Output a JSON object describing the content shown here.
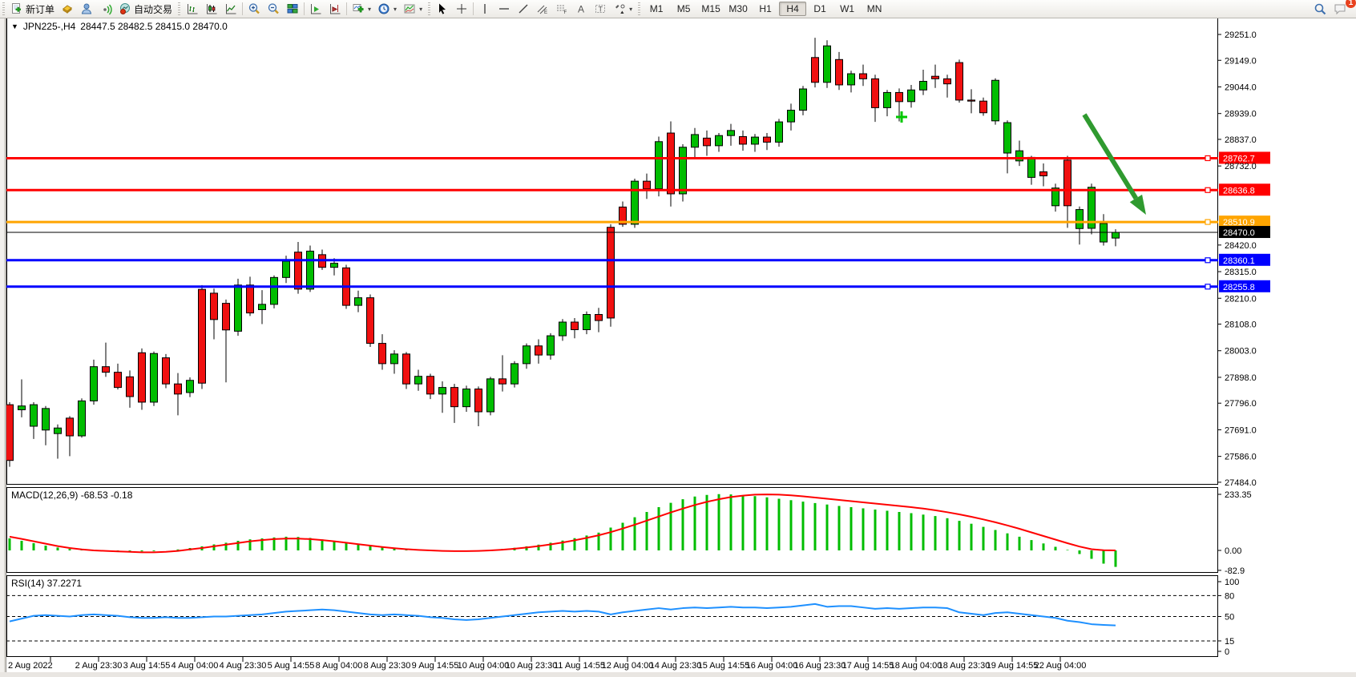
{
  "toolbar": {
    "new_order_label": "新订单",
    "autotrading_label": "自动交易",
    "timeframes": [
      "M1",
      "M5",
      "M15",
      "M30",
      "H1",
      "H4",
      "D1",
      "W1",
      "MN"
    ],
    "active_timeframe": "H4",
    "notification_badge": "1"
  },
  "chart": {
    "title": "JPN225-,H4",
    "ohlc_text": "28447.5 28482.5 28415.0 28470.0",
    "macd_label": "MACD(12,26,9) -68.53 -0.18",
    "rsi_label": "RSI(14) 37.2271"
  },
  "chart_data": {
    "type": "candlestick",
    "symbol": "JPN225-",
    "period": "H4",
    "last_ohlc": {
      "open": 28447.5,
      "high": 28482.5,
      "low": 28415.0,
      "close": 28470.0
    },
    "price_ticks": [
      29251.0,
      29149.0,
      29044.0,
      28939.0,
      28837.0,
      28732.0,
      28420.0,
      28315.0,
      28210.0,
      28108.0,
      28003.0,
      27898.0,
      27796.0,
      27691.0,
      27586.0,
      27484.0
    ],
    "levels": [
      {
        "price": 28762.7,
        "color": "#ff0000",
        "width": 3
      },
      {
        "price": 28636.8,
        "color": "#ff0000",
        "width": 3
      },
      {
        "price": 28510.9,
        "color": "#ffa500",
        "width": 3
      },
      {
        "price": 28470.0,
        "color": "#000000",
        "width": 1,
        "current": true
      },
      {
        "price": 28360.1,
        "color": "#0000ff",
        "width": 3
      },
      {
        "price": 28255.8,
        "color": "#0000ff",
        "width": 3
      }
    ],
    "candles": [
      [
        27790,
        27800,
        27545,
        27570
      ],
      [
        27770,
        27890,
        27740,
        27785
      ],
      [
        27705,
        27800,
        27655,
        27790
      ],
      [
        27690,
        27785,
        27630,
        27775
      ],
      [
        27676,
        27712,
        27577,
        27698
      ],
      [
        27737,
        27745,
        27587,
        27667
      ],
      [
        27667,
        27815,
        27660,
        27805
      ],
      [
        27805,
        27968,
        27790,
        27940
      ],
      [
        27940,
        28035,
        27900,
        27918
      ],
      [
        27918,
        27952,
        27850,
        27858
      ],
      [
        27900,
        27925,
        27778,
        27822
      ],
      [
        27995,
        28012,
        27770,
        27800
      ],
      [
        27800,
        28000,
        27785,
        27992
      ],
      [
        27975,
        27990,
        27855,
        27872
      ],
      [
        27872,
        27915,
        27748,
        27832
      ],
      [
        27838,
        27898,
        27820,
        27886
      ],
      [
        28245,
        28262,
        27852,
        27875
      ],
      [
        28230,
        28248,
        28048,
        28126
      ],
      [
        28190,
        28205,
        27878,
        28085
      ],
      [
        28080,
        28287,
        28062,
        28262
      ],
      [
        28262,
        28295,
        28140,
        28152
      ],
      [
        28165,
        28242,
        28108,
        28186
      ],
      [
        28186,
        28300,
        28170,
        28292
      ],
      [
        28292,
        28378,
        28270,
        28356
      ],
      [
        28392,
        28432,
        28228,
        28246
      ],
      [
        28246,
        28418,
        28235,
        28396
      ],
      [
        28382,
        28402,
        28322,
        28332
      ],
      [
        28332,
        28368,
        28300,
        28348
      ],
      [
        28330,
        28342,
        28168,
        28182
      ],
      [
        28182,
        28240,
        28155,
        28212
      ],
      [
        28212,
        28225,
        28018,
        28032
      ],
      [
        28032,
        28068,
        27928,
        27952
      ],
      [
        27952,
        28005,
        27912,
        27990
      ],
      [
        27990,
        27998,
        27852,
        27872
      ],
      [
        27872,
        27928,
        27845,
        27902
      ],
      [
        27902,
        27912,
        27812,
        27832
      ],
      [
        27832,
        27882,
        27758,
        27858
      ],
      [
        27858,
        27872,
        27718,
        27782
      ],
      [
        27782,
        27865,
        27762,
        27852
      ],
      [
        27852,
        27862,
        27705,
        27762
      ],
      [
        27762,
        27900,
        27748,
        27892
      ],
      [
        27892,
        27985,
        27842,
        27872
      ],
      [
        27872,
        27962,
        27858,
        27952
      ],
      [
        27952,
        28032,
        27932,
        28022
      ],
      [
        28022,
        28048,
        27952,
        27986
      ],
      [
        27986,
        28072,
        27968,
        28062
      ],
      [
        28062,
        28128,
        28042,
        28116
      ],
      [
        28116,
        28132,
        28052,
        28086
      ],
      [
        28086,
        28158,
        28068,
        28146
      ],
      [
        28146,
        28172,
        28076,
        28122
      ],
      [
        28490,
        28502,
        28098,
        28132
      ],
      [
        28570,
        28592,
        28492,
        28502
      ],
      [
        28502,
        28682,
        28488,
        28672
      ],
      [
        28672,
        28702,
        28602,
        28642
      ],
      [
        28642,
        28848,
        28612,
        28828
      ],
      [
        28862,
        28908,
        28572,
        28622
      ],
      [
        28622,
        28818,
        28592,
        28806
      ],
      [
        28806,
        28882,
        28762,
        28856
      ],
      [
        28842,
        28872,
        28772,
        28812
      ],
      [
        28812,
        28862,
        28788,
        28852
      ],
      [
        28852,
        28898,
        28812,
        28872
      ],
      [
        28848,
        28872,
        28792,
        28818
      ],
      [
        28818,
        28858,
        28788,
        28846
      ],
      [
        28846,
        28862,
        28795,
        28826
      ],
      [
        28826,
        28918,
        28808,
        28906
      ],
      [
        28906,
        28978,
        28872,
        28952
      ],
      [
        28952,
        29048,
        28932,
        29036
      ],
      [
        29160,
        29238,
        29042,
        29062
      ],
      [
        29062,
        29228,
        29040,
        29206
      ],
      [
        29152,
        29182,
        29032,
        29052
      ],
      [
        29052,
        29108,
        29022,
        29096
      ],
      [
        29096,
        29132,
        29048,
        29076
      ],
      [
        29076,
        29092,
        28906,
        28962
      ],
      [
        28962,
        29032,
        28928,
        29022
      ],
      [
        29022,
        29038,
        28908,
        28986
      ],
      [
        28986,
        29052,
        28962,
        29032
      ],
      [
        29032,
        29112,
        29012,
        29066
      ],
      [
        29086,
        29132,
        29040,
        29076
      ],
      [
        29076,
        29092,
        29002,
        29056
      ],
      [
        29140,
        29152,
        28982,
        28992
      ],
      [
        28992,
        29035,
        28940,
        28988
      ],
      [
        28988,
        29002,
        28930,
        28942
      ],
      [
        28910,
        29078,
        28895,
        29070
      ],
      [
        28783,
        28912,
        28703,
        28903
      ],
      [
        28752,
        28832,
        28732,
        28792
      ],
      [
        28687,
        28772,
        28658,
        28766
      ],
      [
        28709,
        28742,
        28652,
        28693
      ],
      [
        28575,
        28662,
        28552,
        28645
      ],
      [
        28755,
        28772,
        28488,
        28575
      ],
      [
        28485,
        28572,
        28422,
        28560
      ],
      [
        28486,
        28662,
        28462,
        28648
      ],
      [
        28432,
        28542,
        28418,
        28505
      ],
      [
        28447.5,
        28482.5,
        28415.0,
        28470.0
      ]
    ],
    "macd": {
      "label": "MACD(12,26,9)",
      "current_values": [
        -68.53,
        -0.18
      ],
      "axis_labels": [
        233.35,
        0.0,
        -82.9
      ],
      "histogram": [
        50,
        40,
        30,
        20,
        12,
        6,
        2,
        0,
        -1,
        -2,
        -3,
        -4,
        -3,
        0,
        4,
        10,
        17,
        25,
        32,
        40,
        46,
        50,
        54,
        57,
        56,
        52,
        46,
        39,
        32,
        25,
        18,
        12,
        7,
        3,
        0,
        -2,
        -4,
        -4,
        -3,
        -1,
        2,
        6,
        11,
        17,
        24,
        32,
        41,
        51,
        62,
        74,
        95,
        115,
        138,
        160,
        180,
        198,
        213,
        224,
        231,
        234,
        233,
        230,
        226,
        221,
        215,
        209,
        203,
        197,
        191,
        185,
        180,
        175,
        170,
        165,
        160,
        155,
        149,
        143,
        134,
        123,
        111,
        98,
        85,
        71,
        57,
        43,
        29,
        15,
        2,
        -15,
        -35,
        -55,
        -68.53
      ],
      "signal": [
        57,
        48,
        38,
        28,
        18,
        10,
        4,
        0,
        -2,
        -4,
        -6,
        -8,
        -8,
        -6,
        -2,
        4,
        10,
        17,
        24,
        31,
        38,
        43,
        47,
        49,
        49,
        47,
        43,
        38,
        32,
        26,
        20,
        14,
        9,
        5,
        2,
        0,
        -2,
        -3,
        -3,
        -2,
        0,
        3,
        7,
        12,
        18,
        25,
        33,
        42,
        52,
        63,
        76,
        91,
        107,
        124,
        141,
        158,
        174,
        189,
        202,
        213,
        222,
        228,
        232,
        233,
        232,
        229,
        225,
        220,
        215,
        210,
        205,
        200,
        195,
        190,
        185,
        180,
        174,
        167,
        159,
        150,
        140,
        129,
        117,
        104,
        90,
        75,
        60,
        45,
        30,
        16,
        5,
        1,
        -0.18
      ]
    },
    "rsi": {
      "label": "RSI(14)",
      "current_value": 37.2271,
      "axis_labels": [
        100,
        80,
        50,
        15,
        0
      ],
      "dashed_levels": [
        80,
        50,
        15
      ],
      "series": [
        43,
        47,
        51,
        52,
        51,
        50,
        52,
        53,
        52,
        51,
        49,
        48,
        48,
        49,
        48,
        48,
        49,
        50,
        50,
        51,
        52,
        53,
        55,
        57,
        58,
        59,
        60,
        59,
        57,
        55,
        53,
        52,
        53,
        52,
        51,
        49,
        48,
        46,
        45,
        46,
        48,
        50,
        52,
        54,
        56,
        57,
        58,
        57,
        58,
        57,
        53,
        56,
        58,
        60,
        62,
        60,
        62,
        63,
        62,
        63,
        64,
        63,
        63,
        62,
        63,
        64,
        66,
        68,
        64,
        65,
        65,
        63,
        61,
        62,
        61,
        62,
        63,
        63,
        62,
        56,
        54,
        52,
        55,
        56,
        54,
        52,
        50,
        48,
        44,
        42,
        39,
        38,
        37.23
      ]
    },
    "time_labels": [
      "2 Aug 2022",
      "2 Aug 23:30",
      "3 Aug 14:55",
      "4 Aug 04:00",
      "4 Aug 23:30",
      "5 Aug 14:55",
      "8 Aug 04:00",
      "8 Aug 23:30",
      "9 Aug 14:55",
      "10 Aug 04:00",
      "10 Aug 23:30",
      "11 Aug 14:55",
      "12 Aug 04:00",
      "14 Aug 23:30",
      "15 Aug 14:55",
      "16 Aug 04:00",
      "16 Aug 23:30",
      "17 Aug 14:55",
      "18 Aug 04:00",
      "18 Aug 23:30",
      "19 Aug 14:55",
      "22 Aug 04:00"
    ],
    "annotations": {
      "arrow": {
        "from": [
          1353,
          143
        ],
        "to": [
          1430,
          268
        ],
        "color": "#2f9a2f"
      },
      "plus_marker": {
        "x": 1125,
        "y": 146,
        "color": "#00c800"
      }
    },
    "colors": {
      "up": "#00bd00",
      "down": "#f01010",
      "wick": "#000000",
      "macd_line": "#ff0000",
      "macd_hist": "#00bd00",
      "rsi_line": "#1e90ff",
      "background": "#ffffff",
      "axis_text": "#000000"
    }
  }
}
